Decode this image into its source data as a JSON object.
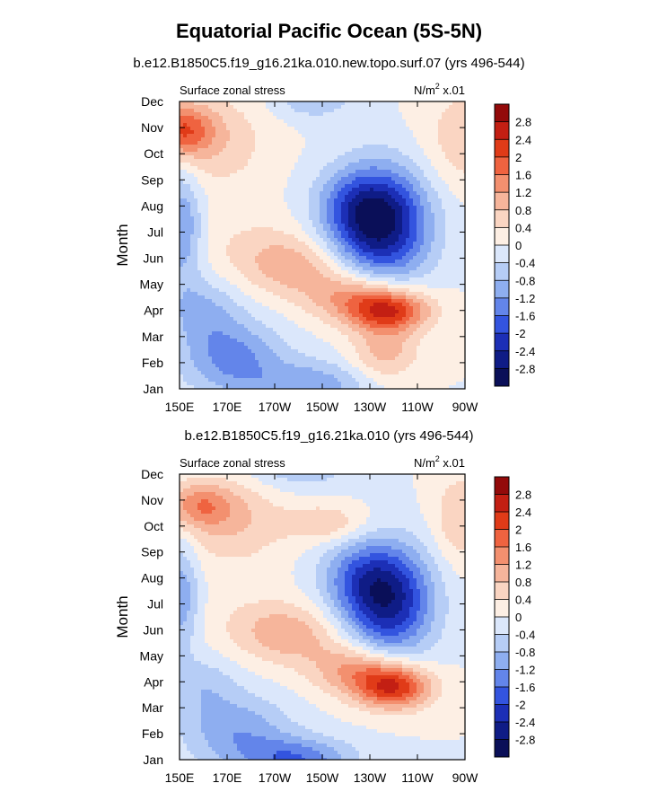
{
  "title": "Equatorial Pacific Ocean (5S-5N)",
  "colorbar": {
    "levels": [
      "2.8",
      "2.4",
      "2",
      "1.6",
      "1.2",
      "0.8",
      "0.4",
      "0",
      "-0.4",
      "-0.8",
      "-1.2",
      "-1.6",
      "-2",
      "-2.4",
      "-2.8"
    ],
    "colors": [
      "#930a0a",
      "#c31f13",
      "#e03b18",
      "#ef6340",
      "#f3906f",
      "#f6b59b",
      "#fad5c2",
      "#fdefe4",
      "#dbe7fb",
      "#b6cdf6",
      "#8eaef0",
      "#6385ea",
      "#3354df",
      "#1c2fb6",
      "#0f1c86",
      "#0a0f58"
    ]
  },
  "chart_data": [
    {
      "type": "heatmap",
      "subtitle": "b.e12.B1850C5.f19_g16.21ka.010.new.topo.surf.07 (yrs 496-544)",
      "label_left": "Surface zonal stress",
      "units_prefix": "N/m",
      "units_sup": "2",
      "units_suffix": " x.01",
      "xlabel": "",
      "ylabel": "Month",
      "x_ticks": [
        "150E",
        "170E",
        "170W",
        "150W",
        "130W",
        "110W",
        "90W"
      ],
      "y_ticks": [
        "Jan",
        "Feb",
        "Mar",
        "Apr",
        "May",
        "Jun",
        "Jul",
        "Aug",
        "Sep",
        "Oct",
        "Nov",
        "Dec"
      ],
      "xlim": [
        150,
        270
      ],
      "ylim": [
        1,
        12
      ],
      "features": [
        {
          "lon": 151,
          "month": 10.9,
          "value": 1.7,
          "sx": 9,
          "sy": 0.7
        },
        {
          "lon": 165,
          "month": 10.5,
          "value": 0.7,
          "sx": 16,
          "sy": 1.3
        },
        {
          "lon": 270,
          "month": 10.6,
          "value": 0.7,
          "sx": 12,
          "sy": 1.4
        },
        {
          "lon": 235,
          "month": 7.3,
          "value": -2.8,
          "sx": 14,
          "sy": 1.5
        },
        {
          "lon": 223,
          "month": 8.0,
          "value": -0.9,
          "sx": 12,
          "sy": 1.0
        },
        {
          "lon": 206,
          "month": 12.2,
          "value": -0.8,
          "sx": 12,
          "sy": 0.6
        },
        {
          "lon": 151,
          "month": 7.2,
          "value": -1.2,
          "sx": 6,
          "sy": 1.6
        },
        {
          "lon": 238,
          "month": 4.0,
          "value": 2.3,
          "sx": 12,
          "sy": 0.55
        },
        {
          "lon": 222,
          "month": 4.6,
          "value": 1.2,
          "sx": 14,
          "sy": 0.7
        },
        {
          "lon": 198,
          "month": 5.7,
          "value": 0.9,
          "sx": 14,
          "sy": 0.8
        },
        {
          "lon": 180,
          "month": 6.4,
          "value": 0.4,
          "sx": 16,
          "sy": 1.0
        },
        {
          "lon": 236,
          "month": 2.4,
          "value": 1.0,
          "sx": 10,
          "sy": 0.8
        },
        {
          "lon": 172,
          "month": 2.2,
          "value": -1.3,
          "sx": 15,
          "sy": 1.0
        },
        {
          "lon": 205,
          "month": 1.1,
          "value": -1.1,
          "sx": 18,
          "sy": 0.7
        },
        {
          "lon": 160,
          "month": 4.0,
          "value": -0.8,
          "sx": 11,
          "sy": 0.9
        }
      ]
    },
    {
      "type": "heatmap",
      "subtitle": "b.e12.B1850C5.f19_g16.21ka.010 (yrs 496-544)",
      "label_left": "Surface zonal stress",
      "units_prefix": "N/m",
      "units_sup": "2",
      "units_suffix": " x.01",
      "xlabel": "",
      "ylabel": "Month",
      "x_ticks": [
        "150E",
        "170E",
        "170W",
        "150W",
        "130W",
        "110W",
        "90W"
      ],
      "y_ticks": [
        "Jan",
        "Feb",
        "Mar",
        "Apr",
        "May",
        "Jun",
        "Jul",
        "Aug",
        "Sep",
        "Oct",
        "Nov",
        "Dec"
      ],
      "xlim": [
        150,
        270
      ],
      "ylim": [
        1,
        12
      ],
      "features": [
        {
          "lon": 158,
          "month": 10.8,
          "value": 1.2,
          "sx": 10,
          "sy": 0.6
        },
        {
          "lon": 172,
          "month": 10.2,
          "value": 0.8,
          "sx": 16,
          "sy": 1.2
        },
        {
          "lon": 212,
          "month": 10.1,
          "value": 0.8,
          "sx": 12,
          "sy": 0.5
        },
        {
          "lon": 268,
          "month": 10.3,
          "value": 0.8,
          "sx": 8,
          "sy": 1.2
        },
        {
          "lon": 238,
          "month": 7.1,
          "value": -2.5,
          "sx": 13,
          "sy": 1.5
        },
        {
          "lon": 225,
          "month": 8.0,
          "value": -1.0,
          "sx": 12,
          "sy": 1.0
        },
        {
          "lon": 200,
          "month": 12.3,
          "value": -0.8,
          "sx": 15,
          "sy": 0.6
        },
        {
          "lon": 151,
          "month": 7.3,
          "value": -1.1,
          "sx": 5,
          "sy": 1.5
        },
        {
          "lon": 240,
          "month": 3.8,
          "value": 2.4,
          "sx": 11,
          "sy": 0.6
        },
        {
          "lon": 224,
          "month": 4.5,
          "value": 1.3,
          "sx": 13,
          "sy": 0.7
        },
        {
          "lon": 198,
          "month": 5.8,
          "value": 0.9,
          "sx": 14,
          "sy": 0.8
        },
        {
          "lon": 182,
          "month": 6.2,
          "value": 0.4,
          "sx": 15,
          "sy": 0.9
        },
        {
          "lon": 174,
          "month": 2.1,
          "value": -1.1,
          "sx": 16,
          "sy": 1.0
        },
        {
          "lon": 200,
          "month": 1.0,
          "value": -1.5,
          "sx": 16,
          "sy": 0.6
        },
        {
          "lon": 160,
          "month": 3.9,
          "value": -0.6,
          "sx": 10,
          "sy": 0.8
        }
      ]
    }
  ]
}
